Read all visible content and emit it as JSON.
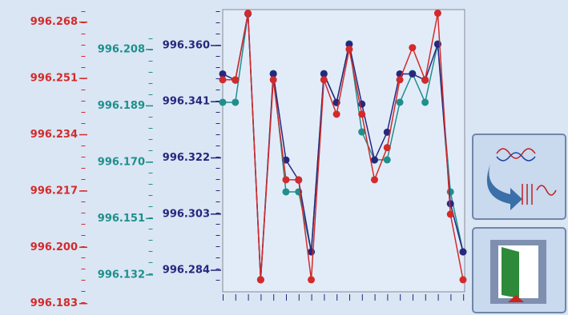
{
  "chart_data": {
    "type": "line",
    "categories": [
      null,
      null,
      null,
      null,
      null,
      null,
      null,
      null,
      null,
      null,
      null,
      null,
      null,
      null,
      null,
      null,
      null,
      null,
      null,
      null
    ],
    "series": [
      {
        "color": "#d42a2a",
        "ylim": [
          996.181,
          996.273
        ],
        "yticks": [
          996.183,
          {
            "value": 996.2,
            "label": "996.200"
          },
          996.217,
          996.234,
          996.251,
          996.268
        ],
        "values": [
          996.2506,
          996.2506,
          996.2707,
          996.1902,
          996.2506,
          996.2204,
          996.2204,
          996.1902,
          996.2506,
          996.2402,
          996.2598,
          996.2402,
          996.2204,
          996.2301,
          996.2506,
          996.2603,
          996.2506,
          996.2707,
          996.21,
          996.1902
        ]
      },
      {
        "color": "#1f8f8c",
        "ylim": [
          996.1201,
          996.2228
        ],
        "yticks": [
          996.132,
          996.151,
          {
            "value": 996.17,
            "label": "996.170"
          },
          996.189,
          996.208
        ],
        "values": [
          996.1902,
          996.1902,
          996.2201,
          996.1304,
          996.1999,
          996.16,
          996.16,
          996.1398,
          996.1999,
          996.1902,
          996.2099,
          996.1802,
          996.1708,
          996.1708,
          996.1902,
          996.1999,
          996.1902,
          996.2099,
          996.16,
          996.1398
        ]
      },
      {
        "color": "#27277e",
        "ylim": [
          996.2705,
          996.3735
        ],
        "yticks": [
          996.284,
          996.303,
          996.322,
          996.341,
          {
            "value": 996.36,
            "label": "996.360"
          }
        ],
        "values": [
          996.3504,
          996.3483,
          996.3707,
          996.2808,
          996.3504,
          996.3213,
          996.3145,
          996.2902,
          996.3504,
          996.3407,
          996.3604,
          996.3402,
          996.3213,
          996.3307,
          996.3504,
          996.3504,
          996.3483,
          996.3604,
          996.3065,
          996.2902
        ]
      }
    ]
  }
}
